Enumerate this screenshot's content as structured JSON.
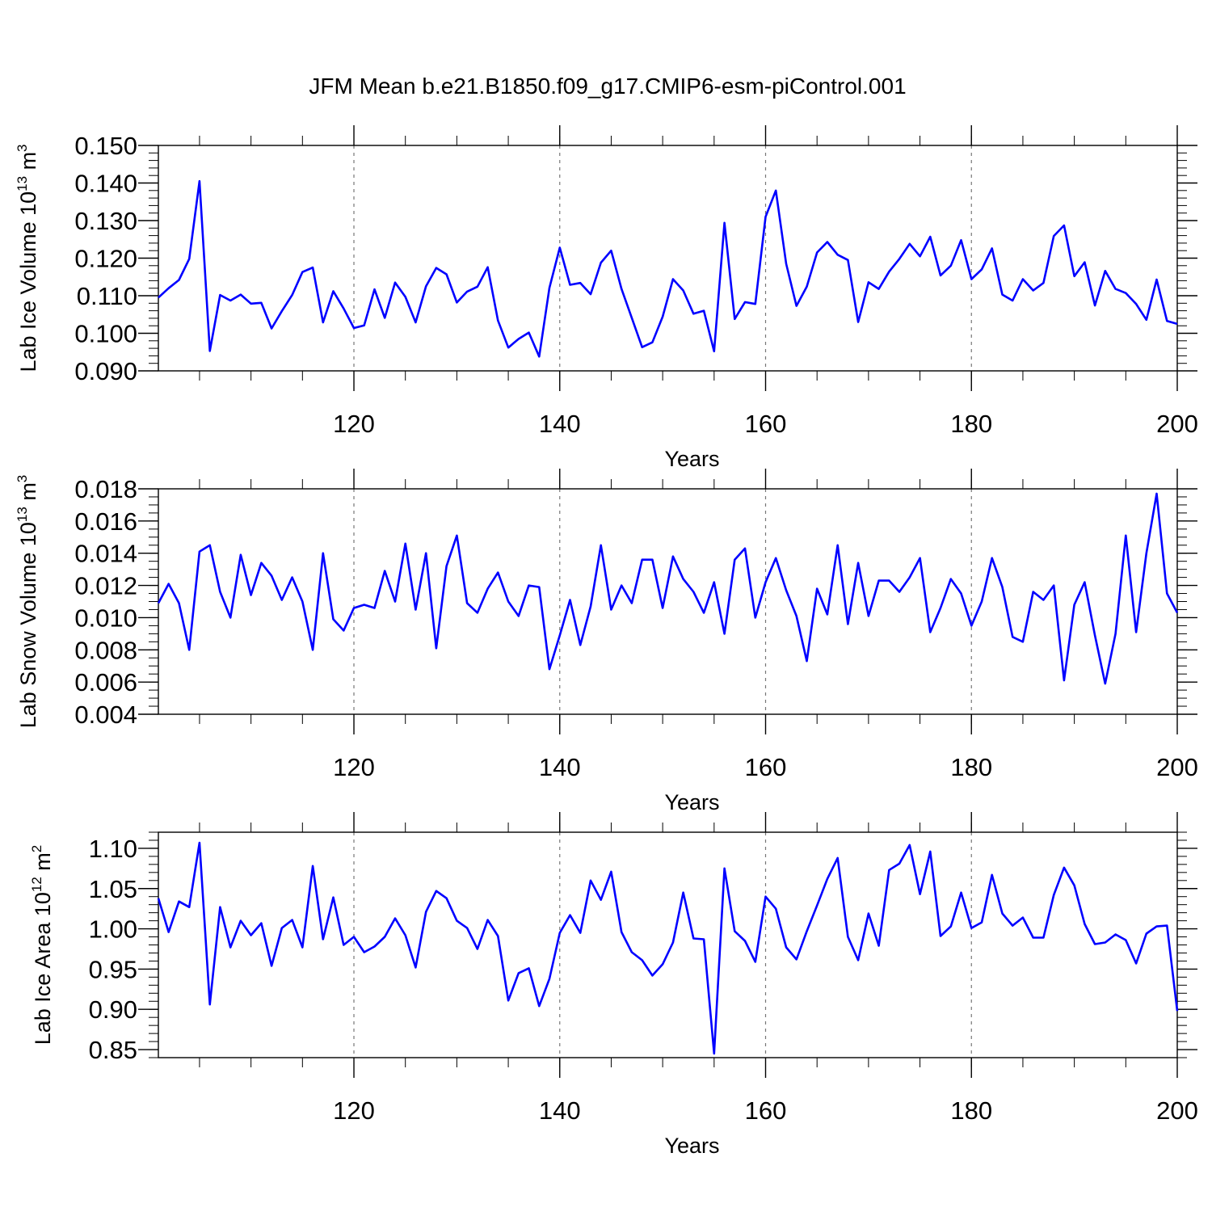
{
  "figure": {
    "title": "JFM Mean b.e21.B1850.f09_g17.CMIP6-esm-piControl.001",
    "line_color": "#0000ff",
    "axis_color": "#000000",
    "grid_color": "#777777"
  },
  "chart_data": [
    {
      "type": "line",
      "name": "panel-ice-volume",
      "title": "",
      "xlabel": "Years",
      "ylabel": {
        "base": "Lab Ice Volume 10",
        "exp": "13",
        "unit": " m",
        "unit_exp": "3"
      },
      "xlim": [
        101,
        200
      ],
      "ylim": [
        0.09,
        0.15
      ],
      "x_ticks": [
        120,
        140,
        160,
        180,
        200
      ],
      "x_tick_labels": [
        "120",
        "140",
        "160",
        "180",
        "200"
      ],
      "y_ticks": [
        0.09,
        0.1,
        0.11,
        0.12,
        0.13,
        0.14,
        0.15
      ],
      "y_tick_labels": [
        "0.090",
        "0.100",
        "0.110",
        "0.120",
        "0.130",
        "0.140",
        "0.150"
      ],
      "y_minor_step": 0.002,
      "x_minor_step": 5,
      "grid": {
        "x": [
          120,
          140,
          160,
          180
        ],
        "style": "dashed"
      },
      "series": [
        {
          "name": "Lab Ice Volume",
          "x_start": 101,
          "values": [
            0.1095,
            0.112,
            0.1142,
            0.1198,
            0.1405,
            0.0953,
            0.1102,
            0.1087,
            0.1103,
            0.1079,
            0.1081,
            0.1013,
            0.1059,
            0.1102,
            0.1163,
            0.1175,
            0.1029,
            0.1112,
            0.1066,
            0.1014,
            0.1021,
            0.1117,
            0.1041,
            0.1135,
            0.1097,
            0.1029,
            0.1125,
            0.1174,
            0.1157,
            0.1082,
            0.1111,
            0.1124,
            0.1176,
            0.1034,
            0.0962,
            0.0985,
            0.1002,
            0.0938,
            0.1121,
            0.1228,
            0.1129,
            0.1134,
            0.1104,
            0.1188,
            0.122,
            0.1118,
            0.1041,
            0.0963,
            0.0976,
            0.1044,
            0.1144,
            0.1114,
            0.1052,
            0.106,
            0.0952,
            0.1294,
            0.1038,
            0.1083,
            0.1078,
            0.131,
            0.138,
            0.1185,
            0.1073,
            0.1124,
            0.1215,
            0.1243,
            0.1209,
            0.1195,
            0.103,
            0.1136,
            0.1118,
            0.1164,
            0.1198,
            0.1238,
            0.1205,
            0.1257,
            0.1154,
            0.118,
            0.1248,
            0.1144,
            0.117,
            0.1226,
            0.1103,
            0.1087,
            0.1144,
            0.1114,
            0.1134,
            0.1259,
            0.1287,
            0.1152,
            0.1189,
            0.1074,
            0.1166,
            0.1118,
            0.1107,
            0.1078,
            0.1036,
            0.1143,
            0.1033,
            0.1025
          ]
        }
      ]
    },
    {
      "type": "line",
      "name": "panel-snow-volume",
      "title": "",
      "xlabel": "Years",
      "ylabel": {
        "base": "Lab Snow Volume 10",
        "exp": "13",
        "unit": " m",
        "unit_exp": "3"
      },
      "xlim": [
        101,
        200
      ],
      "ylim": [
        0.004,
        0.018
      ],
      "x_ticks": [
        120,
        140,
        160,
        180,
        200
      ],
      "x_tick_labels": [
        "120",
        "140",
        "160",
        "180",
        "200"
      ],
      "y_ticks": [
        0.004,
        0.006,
        0.008,
        0.01,
        0.012,
        0.014,
        0.016,
        0.018
      ],
      "y_tick_labels": [
        "0.004",
        "0.006",
        "0.008",
        "0.010",
        "0.012",
        "0.014",
        "0.016",
        "0.018"
      ],
      "y_minor_step": 0.0005,
      "x_minor_step": 5,
      "grid": {
        "x": [
          120,
          140,
          160,
          180
        ],
        "style": "dashed"
      },
      "series": [
        {
          "name": "Lab Snow Volume",
          "x_start": 101,
          "values": [
            0.0109,
            0.0121,
            0.0109,
            0.008,
            0.0141,
            0.0145,
            0.0116,
            0.01,
            0.0139,
            0.0114,
            0.0134,
            0.0126,
            0.0111,
            0.0125,
            0.011,
            0.008,
            0.014,
            0.0099,
            0.0092,
            0.0106,
            0.0108,
            0.0106,
            0.0129,
            0.011,
            0.0146,
            0.0105,
            0.014,
            0.0081,
            0.0132,
            0.0151,
            0.0109,
            0.0103,
            0.0118,
            0.0128,
            0.011,
            0.0101,
            0.012,
            0.0119,
            0.0068,
            0.0089,
            0.0111,
            0.0083,
            0.0107,
            0.0145,
            0.0105,
            0.012,
            0.0109,
            0.0136,
            0.0136,
            0.0106,
            0.0138,
            0.0124,
            0.0116,
            0.0103,
            0.0122,
            0.009,
            0.0136,
            0.0143,
            0.01,
            0.0122,
            0.0137,
            0.0117,
            0.0101,
            0.0073,
            0.0118,
            0.0102,
            0.0145,
            0.0096,
            0.0134,
            0.0101,
            0.0123,
            0.0123,
            0.0116,
            0.0125,
            0.0137,
            0.0091,
            0.0106,
            0.0124,
            0.0115,
            0.0095,
            0.011,
            0.0137,
            0.0119,
            0.0088,
            0.0085,
            0.0116,
            0.0111,
            0.012,
            0.0061,
            0.0108,
            0.0122,
            0.0089,
            0.0059,
            0.009,
            0.0151,
            0.0091,
            0.014,
            0.0177,
            0.0115,
            0.0103
          ]
        }
      ]
    },
    {
      "type": "line",
      "name": "panel-ice-area",
      "title": "",
      "xlabel": "Years",
      "ylabel": {
        "base": "Lab Ice Area 10",
        "exp": "12",
        "unit": " m",
        "unit_exp": "2"
      },
      "xlim": [
        101,
        200
      ],
      "ylim": [
        0.84,
        1.12
      ],
      "x_ticks": [
        120,
        140,
        160,
        180,
        200
      ],
      "x_tick_labels": [
        "120",
        "140",
        "160",
        "180",
        "200"
      ],
      "y_ticks": [
        0.85,
        0.9,
        0.95,
        1.0,
        1.05,
        1.1
      ],
      "y_tick_labels": [
        "0.85",
        "0.90",
        "0.95",
        "1.00",
        "1.05",
        "1.10"
      ],
      "y_minor_step": 0.01,
      "x_minor_step": 5,
      "grid": {
        "x": [
          120,
          140,
          160,
          180
        ],
        "style": "dashed"
      },
      "series": [
        {
          "name": "Lab Ice Area",
          "x_start": 101,
          "values": [
            1.038,
            0.996,
            1.034,
            1.027,
            1.107,
            0.906,
            1.027,
            0.977,
            1.01,
            0.992,
            1.007,
            0.954,
            1.001,
            1.011,
            0.977,
            1.078,
            0.987,
            1.039,
            0.98,
            0.99,
            0.971,
            0.978,
            0.99,
            1.013,
            0.992,
            0.952,
            1.021,
            1.047,
            1.038,
            1.01,
            1.001,
            0.975,
            1.011,
            0.991,
            0.911,
            0.945,
            0.951,
            0.904,
            0.938,
            0.995,
            1.017,
            0.995,
            1.06,
            1.036,
            1.071,
            0.996,
            0.971,
            0.961,
            0.942,
            0.956,
            0.983,
            1.045,
            0.988,
            0.987,
            0.845,
            1.075,
            0.997,
            0.985,
            0.959,
            1.04,
            1.025,
            0.977,
            0.962,
            0.997,
            1.029,
            1.062,
            1.088,
            0.99,
            0.961,
            1.019,
            0.979,
            1.073,
            1.081,
            1.104,
            1.043,
            1.096,
            0.991,
            1.003,
            1.045,
            1.001,
            1.008,
            1.067,
            1.019,
            1.004,
            1.014,
            0.989,
            0.989,
            1.042,
            1.076,
            1.054,
            1.006,
            0.981,
            0.983,
            0.993,
            0.986,
            0.957,
            0.994,
            1.003,
            1.004,
            0.898
          ]
        }
      ]
    }
  ]
}
